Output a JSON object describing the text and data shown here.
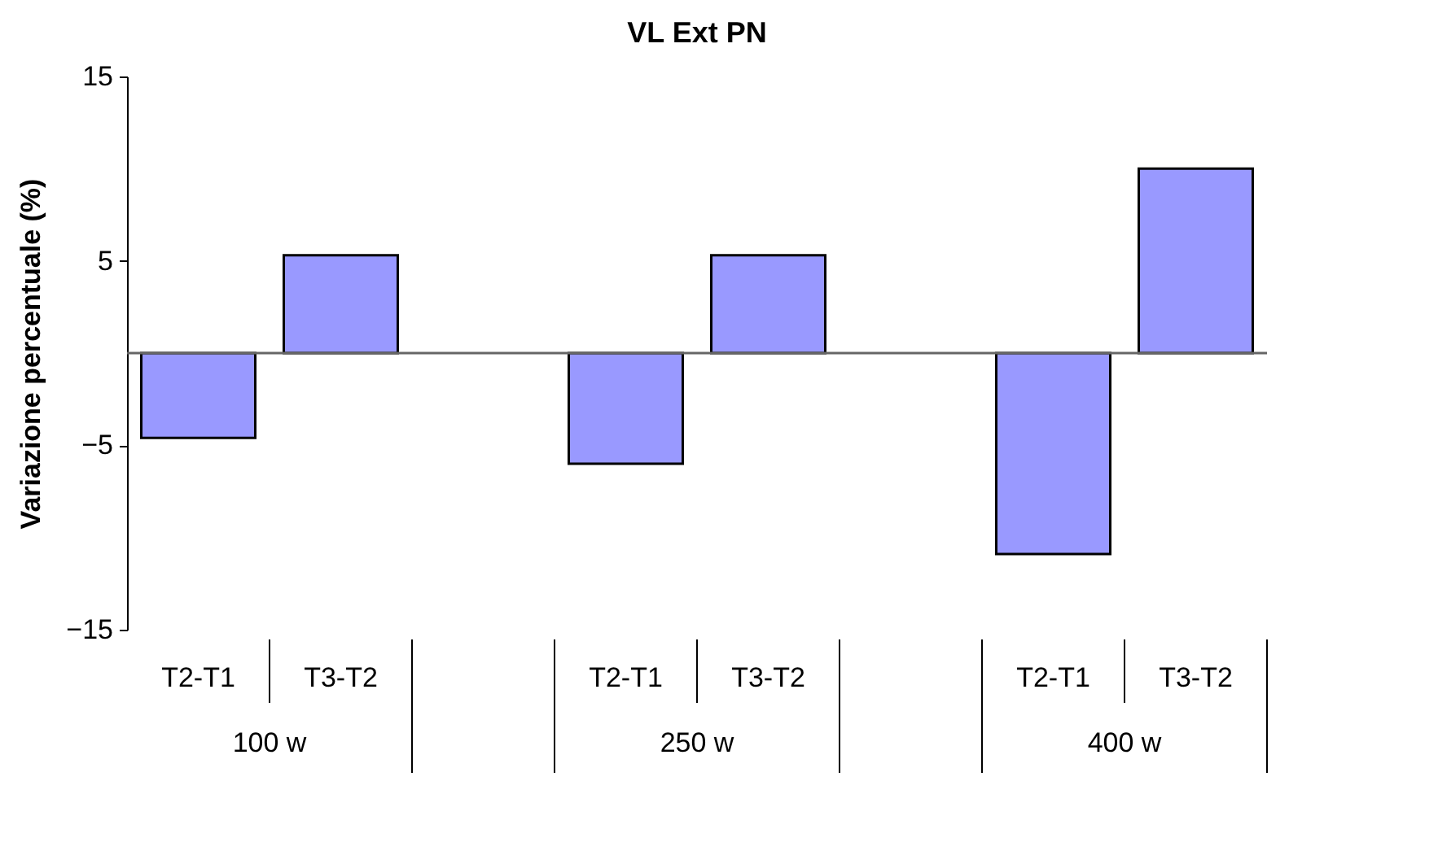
{
  "chart_data": {
    "type": "bar",
    "title": "VL Ext PN",
    "ylabel": "Variazione percentuale (%)",
    "categories": [
      "T2-T1",
      "T3-T2",
      "T2-T1",
      "T3-T2",
      "T2-T1",
      "T3-T2"
    ],
    "annotations": [
      "100 w",
      "250 w",
      "400 w"
    ],
    "values": [
      -4.6,
      5.3,
      -6.0,
      5.3,
      -10.9,
      10.0
    ],
    "color": "#9999ff",
    "ylim": [
      -15,
      15
    ],
    "yticks": [
      -15,
      -5,
      5,
      15
    ],
    "grid": false
  }
}
